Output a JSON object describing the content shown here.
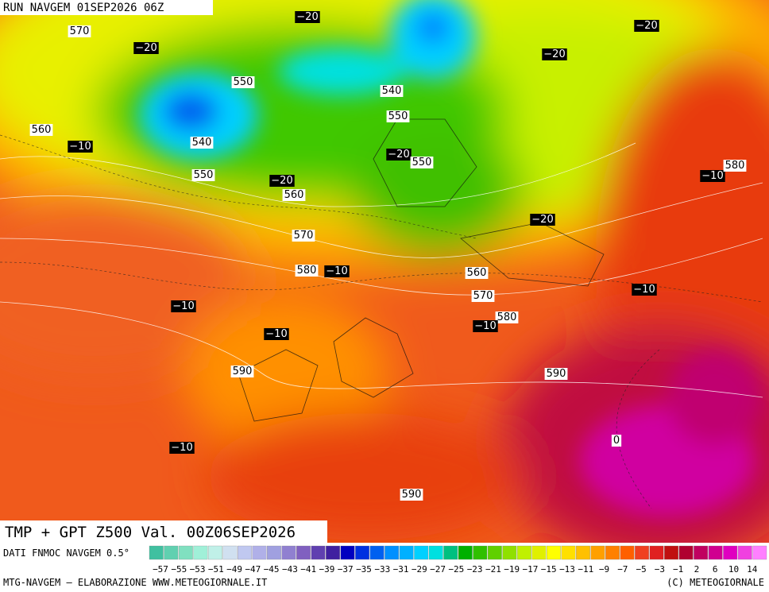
{
  "header": {
    "run": "RUN NAVGEM 01SEP2026 06Z"
  },
  "contour_labels": [
    "−20",
    "570",
    "−20",
    "−20",
    "−20",
    "550",
    "540",
    "550",
    "560",
    "−10",
    "540",
    "−20",
    "550",
    "550",
    "−20",
    "−10",
    "580",
    "560",
    "−20",
    "570",
    "580",
    "−10",
    "560",
    "−10",
    "570",
    "−10",
    "580",
    "−10",
    "−10",
    "590",
    "590",
    "0",
    "−10",
    "590"
  ],
  "footer": {
    "title": "TMP + GPT Z500 Val. 00Z06SEP2026",
    "source": "DATI FNMOC NAVGEM 0.5°",
    "credit": "MTG-NAVGEM – ELABORAZIONE WWW.METEOGIORNALE.IT",
    "copyright": "(C) METEOGIORNALE"
  },
  "colorbar": {
    "labels": [
      "−57",
      "−55",
      "−53",
      "−51",
      "−49",
      "−47",
      "−45",
      "−43",
      "−41",
      "−39",
      "−37",
      "−35",
      "−33",
      "−31",
      "−29",
      "−27",
      "−25",
      "−23",
      "−21",
      "−19",
      "−17",
      "−15",
      "−13",
      "−11",
      "−9",
      "−7",
      "−5",
      "−3",
      "−1",
      "2",
      "6",
      "10",
      "14"
    ],
    "colors": [
      "#40c0a0",
      "#60d0b0",
      "#80e0c0",
      "#a0f0d8",
      "#c0f0e8",
      "#d0e0f0",
      "#c0c8f0",
      "#b0b0e8",
      "#a0a0e0",
      "#9080d0",
      "#8060c0",
      "#6040b0",
      "#4020a0",
      "#0000c0",
      "#0030e0",
      "#0060f0",
      "#0090ff",
      "#00b0ff",
      "#00d0ff",
      "#00e0e0",
      "#00c080",
      "#00b000",
      "#30c000",
      "#60d000",
      "#90e000",
      "#c0f000",
      "#e0f000",
      "#ffff00",
      "#ffe000",
      "#ffc000",
      "#ffa000",
      "#ff8000",
      "#ff6000",
      "#f04020",
      "#e02020",
      "#c01010",
      "#b00030",
      "#c00060",
      "#d00090",
      "#e000c0",
      "#f040e0",
      "#ff80ff"
    ]
  }
}
